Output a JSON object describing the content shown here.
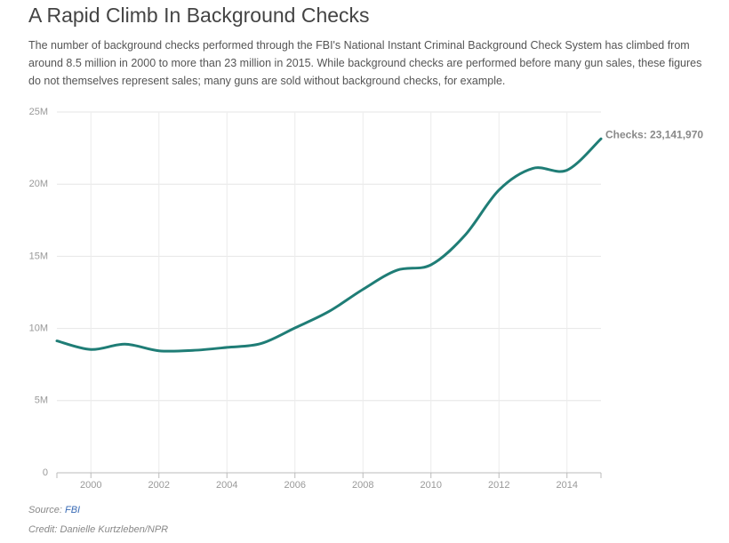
{
  "chart_data": {
    "type": "line",
    "title": "A Rapid Climb In Background Checks",
    "subtitle": "The number of background checks performed through the FBI's National Instant Criminal Background Check System has climbed from around 8.5 million in 2000 to more than 23 million in 2015. While background checks are performed before many gun sales, these figures do not themselves represent sales; many guns are sold without background checks, for example.",
    "x": [
      1999,
      2000,
      2001,
      2002,
      2003,
      2004,
      2005,
      2006,
      2007,
      2008,
      2009,
      2010,
      2011,
      2012,
      2013,
      2014,
      2015
    ],
    "series": [
      {
        "name": "Checks",
        "color": "#1f7d76",
        "values": [
          9138123,
          8543037,
          8910191,
          8454322,
          8481588,
          8687671,
          8952945,
          10036933,
          11177223,
          12709023,
          14033824,
          14409616,
          16454951,
          19592303,
          21093273,
          20968547,
          23141970
        ]
      }
    ],
    "annotation": "Checks: 23,141,970",
    "xlim": [
      1999,
      2015
    ],
    "xticks": [
      2000,
      2002,
      2004,
      2006,
      2008,
      2010,
      2012,
      2014
    ],
    "ylim": [
      0,
      25000000
    ],
    "yticks": [
      0,
      {
        "value": 5000000,
        "label": "5M"
      },
      {
        "value": 10000000,
        "label": "10M"
      },
      {
        "value": 15000000,
        "label": "15M"
      },
      {
        "value": 20000000,
        "label": "20M"
      },
      {
        "value": 25000000,
        "label": "25M"
      }
    ],
    "grid": true,
    "source_label": "Source:",
    "source": "FBI",
    "credit": "Credit: Danielle Kurtzleben/NPR"
  }
}
